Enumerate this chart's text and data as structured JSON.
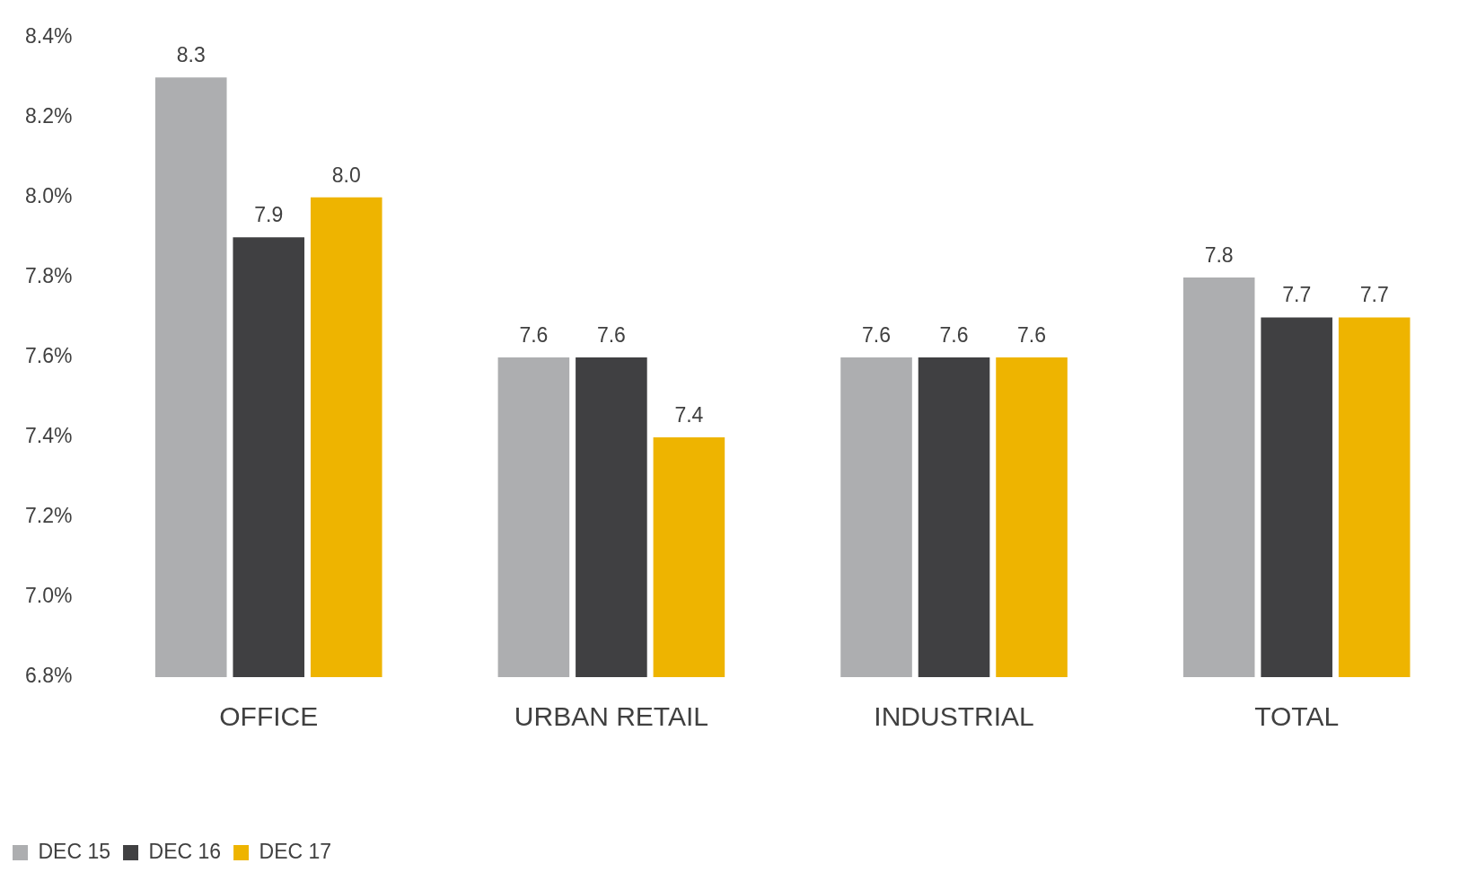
{
  "chart_data": {
    "type": "bar",
    "categories": [
      "OFFICE",
      "URBAN RETAIL",
      "INDUSTRIAL",
      "TOTAL"
    ],
    "series": [
      {
        "name": "DEC 15",
        "color": "#adaeb0",
        "values": [
          8.3,
          7.6,
          7.6,
          7.8
        ],
        "value_labels": [
          "8.3",
          "7.6",
          "7.6",
          "7.8"
        ]
      },
      {
        "name": "DEC 16",
        "color": "#404042",
        "values": [
          7.9,
          7.6,
          7.6,
          7.7
        ],
        "value_labels": [
          "7.9",
          "7.6",
          "7.6",
          "7.7"
        ]
      },
      {
        "name": "DEC 17",
        "color": "#eeb400",
        "values": [
          8.0,
          7.4,
          7.6,
          7.7
        ],
        "value_labels": [
          "8.0",
          "7.4",
          "7.6",
          "7.7"
        ]
      }
    ],
    "ylim": [
      6.8,
      8.4
    ],
    "yticks": [
      {
        "value": 6.8,
        "label": "6.8%"
      },
      {
        "value": 7.0,
        "label": "7.0%"
      },
      {
        "value": 7.2,
        "label": "7.2%"
      },
      {
        "value": 7.4,
        "label": "7.4%"
      },
      {
        "value": 7.6,
        "label": "7.6%"
      },
      {
        "value": 7.8,
        "label": "7.8%"
      },
      {
        "value": 8.0,
        "label": "8.0%"
      },
      {
        "value": 8.2,
        "label": "8.2%"
      },
      {
        "value": 8.4,
        "label": "8.4%"
      }
    ],
    "grid": false,
    "legend": "bottom left"
  }
}
